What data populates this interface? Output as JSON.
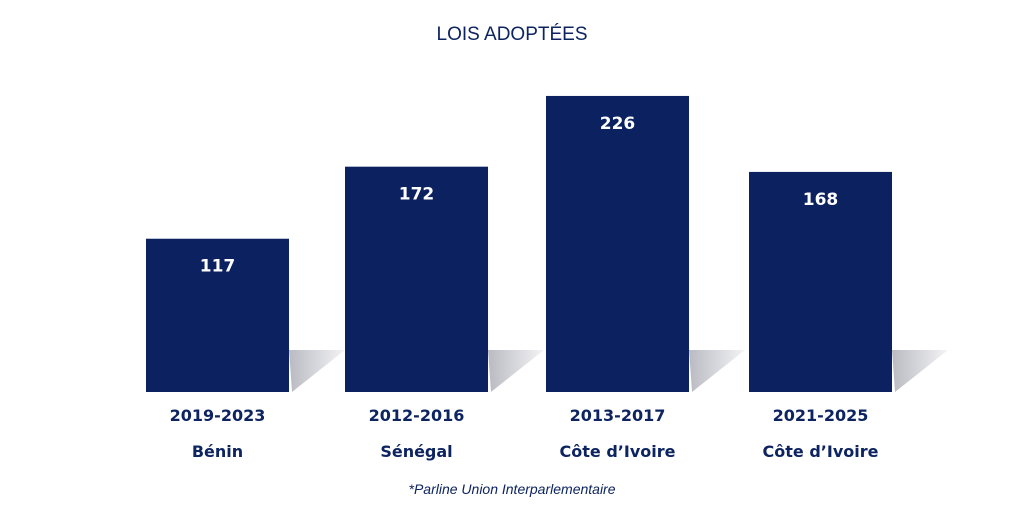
{
  "chart_data": {
    "type": "bar",
    "title": "LOIS ADOPTÉES",
    "categories": [
      {
        "period": "2019-2023",
        "country": "Bénin"
      },
      {
        "period": "2012-2016",
        "country": "Sénégal"
      },
      {
        "period": "2013-2017",
        "country": "Côte d’Ivoire"
      },
      {
        "period": "2021-2025",
        "country": "Côte d’Ivoire"
      }
    ],
    "values": [
      117,
      172,
      226,
      168
    ],
    "ylim": [
      0,
      300
    ],
    "grid": false,
    "xlabel": "",
    "ylabel": "",
    "bar_color": "#0c2160",
    "source": "*Parline Union Interparlementaire"
  }
}
